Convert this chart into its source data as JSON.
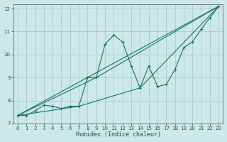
{
  "title": "",
  "xlabel": "Humidex (Indice chaleur)",
  "bg_color": "#cce8e8",
  "grid_color": "#b0c8c8",
  "line_color": "#1a7070",
  "xlim": [
    -0.5,
    23.5
  ],
  "ylim": [
    7,
    12.2
  ],
  "xticks": [
    0,
    1,
    2,
    3,
    4,
    5,
    6,
    7,
    8,
    9,
    10,
    11,
    12,
    13,
    14,
    15,
    16,
    17,
    18,
    19,
    20,
    21,
    22,
    23
  ],
  "yticks": [
    7,
    8,
    9,
    10,
    11,
    12
  ],
  "main_x": [
    0,
    1,
    2,
    3,
    4,
    5,
    6,
    7,
    8,
    9,
    10,
    11,
    12,
    13,
    14,
    15,
    16,
    17,
    18,
    19,
    20,
    21,
    22,
    23
  ],
  "main_y": [
    7.35,
    7.35,
    7.55,
    7.8,
    7.75,
    7.65,
    7.75,
    7.75,
    9.0,
    9.0,
    10.45,
    10.85,
    10.55,
    9.5,
    8.55,
    9.5,
    8.6,
    8.7,
    9.35,
    10.3,
    10.55,
    11.1,
    11.6,
    12.1
  ],
  "line2_x": [
    0,
    23
  ],
  "line2_y": [
    7.35,
    12.1
  ],
  "line3_x": [
    0,
    9,
    23
  ],
  "line3_y": [
    7.35,
    9.0,
    12.1
  ],
  "line4_x": [
    0,
    7,
    14,
    23
  ],
  "line4_y": [
    7.35,
    7.75,
    8.55,
    12.1
  ]
}
